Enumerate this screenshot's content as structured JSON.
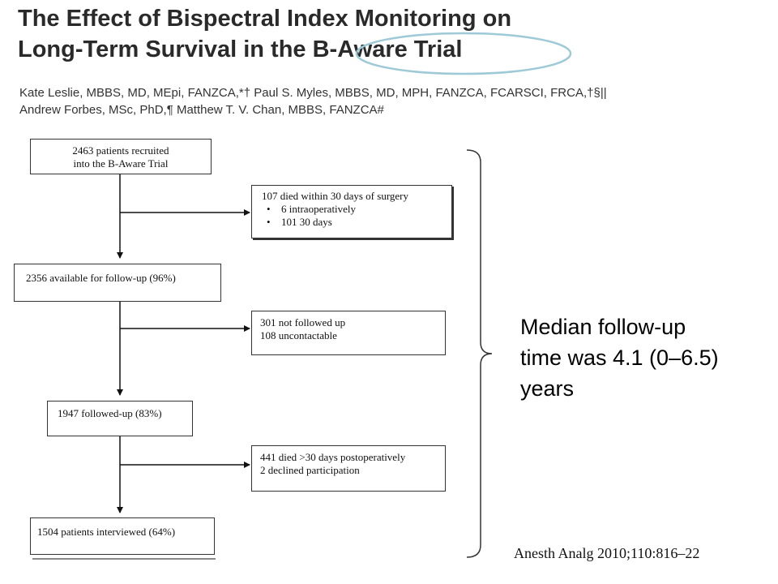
{
  "paper": {
    "title_lines": [
      "The Effect of Bispectral Index Monitoring on",
      "Long-Term Survival in the B-Aware Trial"
    ],
    "author_lines": [
      "Kate Leslie, MBBS, MD, MEpi, FANZCA,*† Paul S. Myles, MBBS, MD, MPH, FANZCA, FCARSCI, FRCA,†§||",
      "Andrew Forbes, MSc, PhD,¶ Matthew T. V. Chan, MBBS, FANZCA#"
    ]
  },
  "flowchart": {
    "recruited": [
      "2463 patients recruited",
      "into the B-Aware Trial"
    ],
    "died30": {
      "heading": "107 died within 30 days of surgery",
      "items": [
        "6 intraoperatively",
        "101   30 days"
      ]
    },
    "available": "2356 available for follow-up (96%)",
    "not_followed": [
      "301 not followed up",
      "108 uncontactable"
    ],
    "followed": "1947 followed-up (83%)",
    "died_post": [
      "441 died >30 days postoperatively",
      "2 declined participation"
    ],
    "interviewed": "1504 patients interviewed (64%)"
  },
  "annotation": {
    "median_lines": [
      "Median follow-up",
      "time was 4.1 (0–6.5)",
      "years"
    ]
  },
  "citation": "Anesth Analg 2010;110:816–22",
  "colors": {
    "highlight_ellipse": "#9ec9d6",
    "box_border": "#333333"
  }
}
